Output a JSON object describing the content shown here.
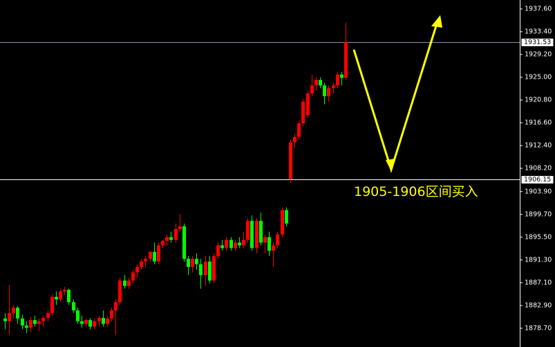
{
  "chart_data": {
    "type": "candlestick",
    "up_color": "#ff0000",
    "down_color": "#00ff00",
    "ylim": [
      1875.24,
      1939.25
    ],
    "yticks": [
      {
        "value": 1937.6,
        "label": "1937.60"
      },
      {
        "value": 1933.4,
        "label": "1933.40"
      },
      {
        "value": 1929.2,
        "label": "1929.20"
      },
      {
        "value": 1925.0,
        "label": "1925.00"
      },
      {
        "value": 1920.8,
        "label": "1920.80"
      },
      {
        "value": 1916.6,
        "label": "1916.60"
      },
      {
        "value": 1912.4,
        "label": "1912.40"
      },
      {
        "value": 1908.2,
        "label": "1908.20"
      },
      {
        "value": 1903.9,
        "label": "1903.90"
      },
      {
        "value": 1899.7,
        "label": "1899.70"
      },
      {
        "value": 1895.5,
        "label": "1895.50"
      },
      {
        "value": 1891.3,
        "label": "1891.30"
      },
      {
        "value": 1887.1,
        "label": "1887.10"
      },
      {
        "value": 1882.9,
        "label": "1882.90"
      },
      {
        "value": 1878.7,
        "label": "1878.70"
      }
    ],
    "price_lines": [
      {
        "value": 1931.53,
        "color": "#8a98b0"
      },
      {
        "value": 1906.15,
        "color": "#ffffff"
      }
    ],
    "annotation": "1905-1906区间买入",
    "open": [
      1880.5,
      1880.0,
      1881.5,
      1882.5,
      1880.5,
      1879.2,
      1878.8,
      1880.2,
      1879.5,
      1880.0,
      1880.6,
      1881.5,
      1884.5,
      1884.0,
      1885.5,
      1885.8,
      1883.5,
      1882.0,
      1880.0,
      1879.5,
      1880.2,
      1879.0,
      1880.0,
      1880.6,
      1879.5,
      1880.5,
      1882.0,
      1883.5,
      1887.5,
      1886.5,
      1887.5,
      1889.0,
      1890.0,
      1891.0,
      1891.5,
      1892.8,
      1891.0,
      1894.0,
      1894.8,
      1895.5,
      1895.0,
      1897.0,
      1897.5,
      1891.5,
      1890.0,
      1891.5,
      1890.5,
      1888.5,
      1891.0,
      1887.5,
      1892.0,
      1894.0,
      1893.5,
      1895.0,
      1893.5,
      1894.5,
      1894.0,
      1895.0,
      1898.5,
      1893.5,
      1898.5,
      1894.5,
      1895.5,
      1893.0,
      1894.0,
      1896.0,
      1900.5,
      1906.2,
      1913.0,
      1914.0,
      1916.5,
      1918.0,
      1922.0,
      1923.5,
      1924.5,
      1923.5,
      1921.5,
      1923.0,
      1923.5,
      1925.5,
      1924.9
    ],
    "high": [
      1881.5,
      1886.7,
      1883.0,
      1882.8,
      1881.2,
      1880.0,
      1880.8,
      1881.0,
      1880.5,
      1881.0,
      1882.0,
      1885.0,
      1885.5,
      1886.0,
      1886.3,
      1886.0,
      1884.0,
      1882.5,
      1881.0,
      1880.5,
      1880.6,
      1880.5,
      1881.0,
      1882.0,
      1881.0,
      1882.5,
      1884.0,
      1888.0,
      1888.5,
      1888.0,
      1889.5,
      1890.5,
      1891.5,
      1892.0,
      1893.0,
      1894.5,
      1894.5,
      1895.0,
      1896.0,
      1896.5,
      1898.0,
      1899.8,
      1898.0,
      1892.0,
      1892.0,
      1892.5,
      1891.5,
      1892.0,
      1892.0,
      1892.5,
      1894.5,
      1895.0,
      1895.5,
      1895.5,
      1895.0,
      1895.5,
      1896.5,
      1899.0,
      1899.5,
      1899.0,
      1900.0,
      1896.0,
      1896.5,
      1894.5,
      1896.5,
      1901.0,
      1901.0,
      1913.5,
      1914.5,
      1917.0,
      1921.0,
      1922.5,
      1925.5,
      1925.0,
      1925.0,
      1924.0,
      1923.5,
      1924.0,
      1926.0,
      1926.0,
      1935.1
    ],
    "low": [
      1878.5,
      1877.5,
      1880.5,
      1879.5,
      1878.5,
      1877.8,
      1878.0,
      1879.0,
      1878.2,
      1879.0,
      1880.0,
      1881.0,
      1883.0,
      1883.5,
      1884.8,
      1883.0,
      1881.5,
      1879.5,
      1878.8,
      1879.0,
      1878.5,
      1878.5,
      1879.0,
      1879.0,
      1879.0,
      1880.0,
      1877.5,
      1883.0,
      1886.0,
      1886.0,
      1887.0,
      1888.0,
      1889.5,
      1890.0,
      1891.0,
      1890.5,
      1890.5,
      1893.5,
      1894.0,
      1894.5,
      1894.5,
      1896.5,
      1891.0,
      1888.5,
      1889.0,
      1889.5,
      1886.0,
      1886.5,
      1887.0,
      1887.0,
      1891.5,
      1893.0,
      1893.0,
      1893.0,
      1893.0,
      1893.5,
      1893.5,
      1894.5,
      1893.0,
      1892.5,
      1894.0,
      1892.5,
      1892.0,
      1890.0,
      1893.5,
      1895.5,
      1897.5,
      1905.5,
      1912.0,
      1913.5,
      1916.0,
      1917.5,
      1921.5,
      1922.5,
      1923.0,
      1920.0,
      1920.5,
      1922.0,
      1923.0,
      1923.5,
      1924.5
    ],
    "close": [
      1880.0,
      1881.5,
      1882.5,
      1880.5,
      1879.2,
      1878.8,
      1880.2,
      1879.5,
      1880.0,
      1880.6,
      1881.5,
      1884.5,
      1884.0,
      1885.5,
      1885.8,
      1883.5,
      1882.0,
      1880.0,
      1879.5,
      1880.2,
      1879.0,
      1880.0,
      1880.6,
      1879.5,
      1880.5,
      1882.0,
      1883.5,
      1887.5,
      1886.5,
      1887.5,
      1889.0,
      1890.0,
      1891.0,
      1891.5,
      1892.8,
      1891.0,
      1894.0,
      1894.8,
      1895.5,
      1895.0,
      1897.0,
      1897.5,
      1891.5,
      1890.0,
      1891.5,
      1890.5,
      1888.5,
      1891.0,
      1887.5,
      1892.0,
      1894.0,
      1893.5,
      1895.0,
      1893.5,
      1894.5,
      1894.0,
      1895.0,
      1898.5,
      1893.5,
      1898.5,
      1894.5,
      1895.5,
      1893.0,
      1894.0,
      1896.0,
      1900.5,
      1898.0,
      1913.0,
      1914.0,
      1916.5,
      1920.5,
      1922.0,
      1923.5,
      1924.5,
      1923.5,
      1921.5,
      1923.0,
      1923.5,
      1925.5,
      1924.9,
      1931.53
    ]
  }
}
